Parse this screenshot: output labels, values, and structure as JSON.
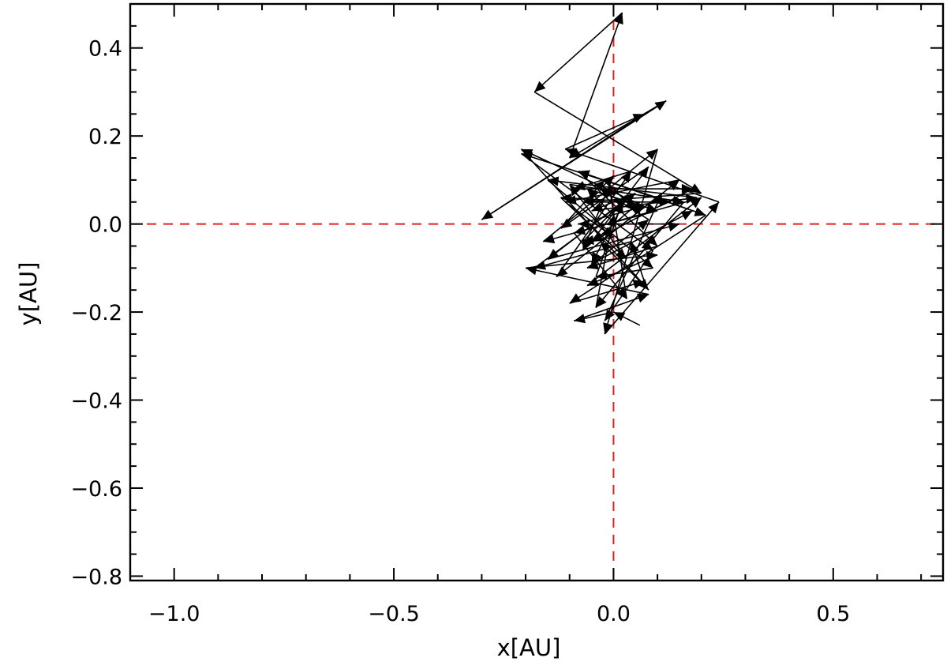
{
  "chart_data": {
    "type": "line",
    "title": "",
    "xlabel": "x[AU]",
    "ylabel": "y[AU]",
    "xlim": [
      -1.1,
      0.75
    ],
    "ylim": [
      -0.81,
      0.5
    ],
    "x_ticks": [
      -1.0,
      -0.5,
      0.0,
      0.5
    ],
    "x_tick_labels": [
      "−1.0",
      "−0.5",
      "0.0",
      "0.5"
    ],
    "y_ticks": [
      0.4,
      0.2,
      0.0,
      -0.2,
      -0.4,
      -0.6,
      -0.8
    ],
    "y_tick_labels": [
      "0.4",
      "0.2",
      "0.0",
      "−0.2",
      "−0.4",
      "−0.6",
      "−0.8"
    ],
    "reference_lines": {
      "x": 0.0,
      "y": 0.0,
      "color": "#e02020",
      "style": "dashed"
    },
    "series_color": "#000000",
    "grid": false,
    "series": [
      {
        "style": "arrows",
        "x": [
          0.06,
          0.0,
          -0.09,
          0.08,
          -0.2,
          0.1,
          -0.06,
          0.2,
          -0.16,
          0.1,
          -0.02,
          0.24,
          -0.11,
          0.07,
          -0.3,
          0.12,
          -0.1,
          0.02,
          -0.18,
          0.2,
          -0.07,
          0.13,
          -0.21,
          0.09,
          -0.02,
          0.11,
          -0.13,
          0.04,
          -0.09,
          0.18,
          -0.05,
          0.08,
          -0.12,
          -0.02,
          0.21,
          -0.1,
          0.07,
          0.04,
          -0.18,
          0.05,
          -0.05,
          0.19,
          -0.15,
          0.09,
          -0.04,
          0.02,
          -0.15,
          0.15,
          -0.08,
          0.07,
          -0.21,
          0.08,
          -0.03,
          0.15,
          -0.11,
          0.0,
          -0.07,
          0.03,
          -0.05,
          0.18,
          -0.08,
          0.1,
          -0.06,
          0.08,
          -0.03,
          0.0,
          -0.07,
          0.06,
          -0.12,
          0.03,
          -0.1,
          0.16,
          -0.04,
          0.0,
          -0.06,
          0.1,
          -0.09,
          0.03,
          -0.01,
          0.05
        ],
        "y": [
          -0.23,
          -0.2,
          -0.22,
          -0.16,
          -0.1,
          -0.07,
          -0.14,
          0.06,
          -0.04,
          0.17,
          -0.25,
          0.05,
          0.17,
          0.25,
          0.01,
          0.28,
          0.15,
          0.48,
          0.3,
          0.07,
          0.05,
          0.05,
          0.16,
          -0.06,
          -0.22,
          0.07,
          -0.12,
          0.12,
          0.08,
          0.08,
          -0.04,
          0.13,
          -0.01,
          0.1,
          0.02,
          -0.18,
          -0.13,
          -0.04,
          -0.1,
          0.07,
          0.03,
          0.06,
          0.1,
          -0.1,
          -0.12,
          0.05,
          -0.08,
          0.0,
          0.0,
          0.04,
          0.17,
          -0.15,
          -0.04,
          0.1,
          0.05,
          -0.03,
          -0.04,
          0.06,
          -0.09,
          0.03,
          0.12,
          -0.05,
          -0.1,
          0.01,
          0.08,
          0.11,
          -0.06,
          0.05,
          0.06,
          -0.08,
          0.09,
          0.05,
          -0.19,
          0.02,
          0.08,
          0.03,
          -0.02,
          -0.17,
          0.09,
          0.03
        ]
      }
    ]
  }
}
